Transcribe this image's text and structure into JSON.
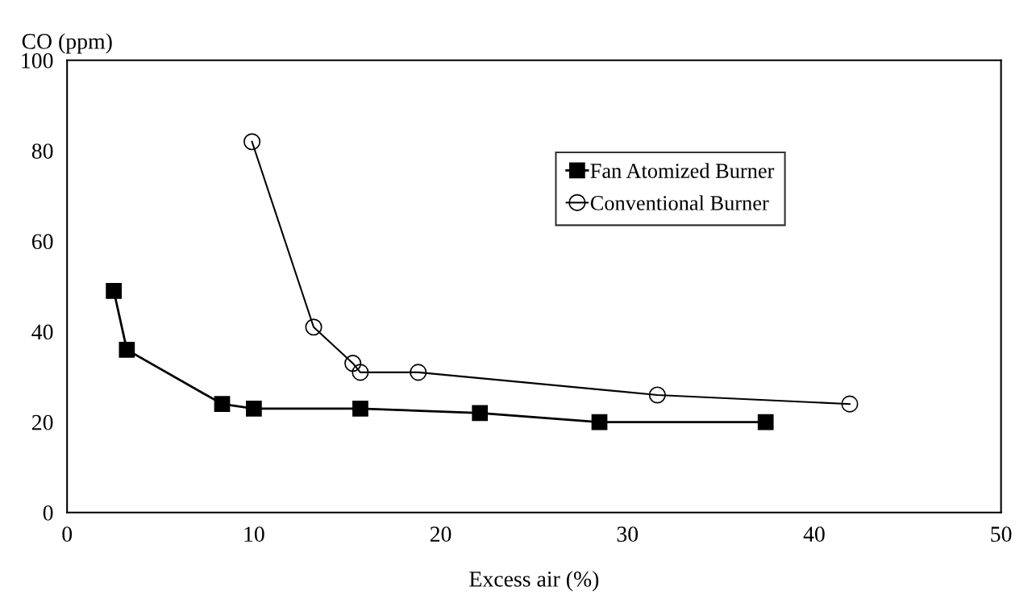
{
  "chart_data": {
    "type": "line",
    "xlabel": "Excess air (%)",
    "ylabel": "CO (ppm)",
    "xlim": [
      0,
      50
    ],
    "xticks": [
      0,
      10,
      20,
      30,
      40,
      50
    ],
    "ylim": [
      0,
      100
    ],
    "yticks": [
      0,
      20,
      40,
      60,
      80,
      100
    ],
    "grid": false,
    "legend": "top right",
    "series": [
      {
        "name": "Fan Atomized Burner",
        "color": "#000000",
        "marker": "square",
        "x": [
          2.5,
          3.2,
          8.3,
          10,
          15.7,
          22.1,
          28.5,
          37.4
        ],
        "values": [
          49,
          36,
          24,
          23,
          23,
          22,
          20,
          20
        ]
      },
      {
        "name": "Conventional Burner",
        "color": "#000000",
        "marker": "circle",
        "x": [
          9.9,
          13.2,
          15.3,
          15.7,
          18.8,
          31.6,
          41.9
        ],
        "values": [
          82,
          41,
          33,
          31,
          31,
          26,
          24
        ]
      }
    ]
  }
}
